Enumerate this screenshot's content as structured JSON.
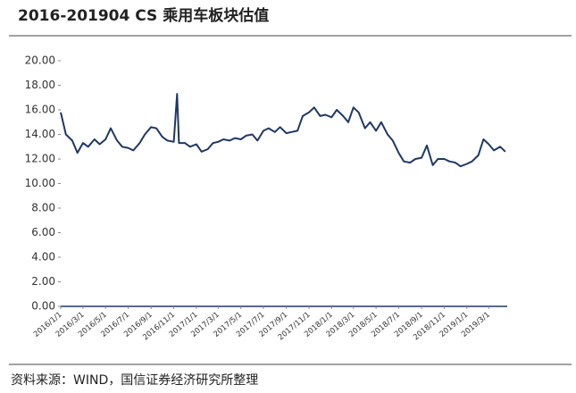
{
  "chart_data": {
    "type": "line",
    "title": "2016-201904 CS 乘用车板块估值",
    "source": "资料来源：WIND，国信证券经济研究所整理",
    "x": [
      "2016/1/1",
      "2016/1/15",
      "2016/2/1",
      "2016/2/15",
      "2016/3/1",
      "2016/3/15",
      "2016/4/1",
      "2016/4/15",
      "2016/5/1",
      "2016/5/15",
      "2016/6/1",
      "2016/6/15",
      "2016/7/1",
      "2016/7/15",
      "2016/8/1",
      "2016/8/15",
      "2016/9/1",
      "2016/9/15",
      "2016/10/1",
      "2016/10/15",
      "2016/11/1",
      "2016/11/10",
      "2016/11/15",
      "2016/12/1",
      "2016/12/15",
      "2017/1/1",
      "2017/1/15",
      "2017/2/1",
      "2017/2/15",
      "2017/3/1",
      "2017/3/15",
      "2017/4/1",
      "2017/4/15",
      "2017/5/1",
      "2017/5/15",
      "2017/6/1",
      "2017/6/15",
      "2017/7/1",
      "2017/7/15",
      "2017/8/1",
      "2017/8/15",
      "2017/9/1",
      "2017/9/15",
      "2017/10/1",
      "2017/10/15",
      "2017/11/1",
      "2017/11/15",
      "2017/12/1",
      "2017/12/15",
      "2018/1/1",
      "2018/1/15",
      "2018/2/1",
      "2018/2/15",
      "2018/3/1",
      "2018/3/15",
      "2018/4/1",
      "2018/4/15",
      "2018/5/1",
      "2018/5/15",
      "2018/6/1",
      "2018/6/15",
      "2018/7/1",
      "2018/7/15",
      "2018/8/1",
      "2018/8/15",
      "2018/9/1",
      "2018/9/15",
      "2018/10/1",
      "2018/10/15",
      "2018/11/1",
      "2018/11/15",
      "2018/12/1",
      "2018/12/15",
      "2019/1/1",
      "2019/1/15",
      "2019/2/1",
      "2019/2/15",
      "2019/3/1",
      "2019/3/15",
      "2019/4/1",
      "2019/4/15"
    ],
    "series": [
      {
        "name": "CS 乘用车",
        "color": "#1f3864",
        "values": [
          15.8,
          14.0,
          13.5,
          12.5,
          13.3,
          13.0,
          13.6,
          13.2,
          13.6,
          14.5,
          13.5,
          13.0,
          12.9,
          12.7,
          13.3,
          14.0,
          14.6,
          14.5,
          13.8,
          13.5,
          13.4,
          17.3,
          13.3,
          13.3,
          13.0,
          13.2,
          12.6,
          12.8,
          13.3,
          13.4,
          13.6,
          13.5,
          13.7,
          13.6,
          13.9,
          14.0,
          13.5,
          14.3,
          14.5,
          14.2,
          14.6,
          14.1,
          14.2,
          14.3,
          15.5,
          15.8,
          16.2,
          15.5,
          15.6,
          15.4,
          16.0,
          15.5,
          15.0,
          16.2,
          15.8,
          14.5,
          15.0,
          14.3,
          15.0,
          14.0,
          13.5,
          12.5,
          11.8,
          11.7,
          12.0,
          12.1,
          13.1,
          11.5,
          12.0,
          12.0,
          11.8,
          11.7,
          11.4,
          11.6,
          11.8,
          12.3,
          13.6,
          13.2,
          12.7,
          13.0,
          12.6
        ]
      }
    ],
    "xlim": [
      "2016/1/1",
      "2019/4/20"
    ],
    "xticks": [
      "2016/1/1",
      "2016/3/1",
      "2016/5/1",
      "2016/7/1",
      "2016/9/1",
      "2016/11/1",
      "2017/1/1",
      "2017/3/1",
      "2017/5/1",
      "2017/7/1",
      "2017/9/1",
      "2017/11/1",
      "2018/1/1",
      "2018/3/1",
      "2018/5/1",
      "2018/7/1",
      "2018/9/1",
      "2018/11/1",
      "2019/1/1",
      "2019/3/1"
    ],
    "ylim": [
      0,
      20
    ],
    "yticks": [
      {
        "value": 0,
        "label": "0.00"
      },
      {
        "value": 2,
        "label": "2.00"
      },
      {
        "value": 4,
        "label": "4.00"
      },
      {
        "value": 6,
        "label": "6.00"
      },
      {
        "value": 8,
        "label": "8.00"
      },
      {
        "value": 10,
        "label": "10.00"
      },
      {
        "value": 12,
        "label": "12.00"
      },
      {
        "value": 14,
        "label": "14.00"
      },
      {
        "value": 16,
        "label": "16.00"
      },
      {
        "value": 18,
        "label": "18.00"
      },
      {
        "value": 20,
        "label": "20.00"
      }
    ]
  }
}
